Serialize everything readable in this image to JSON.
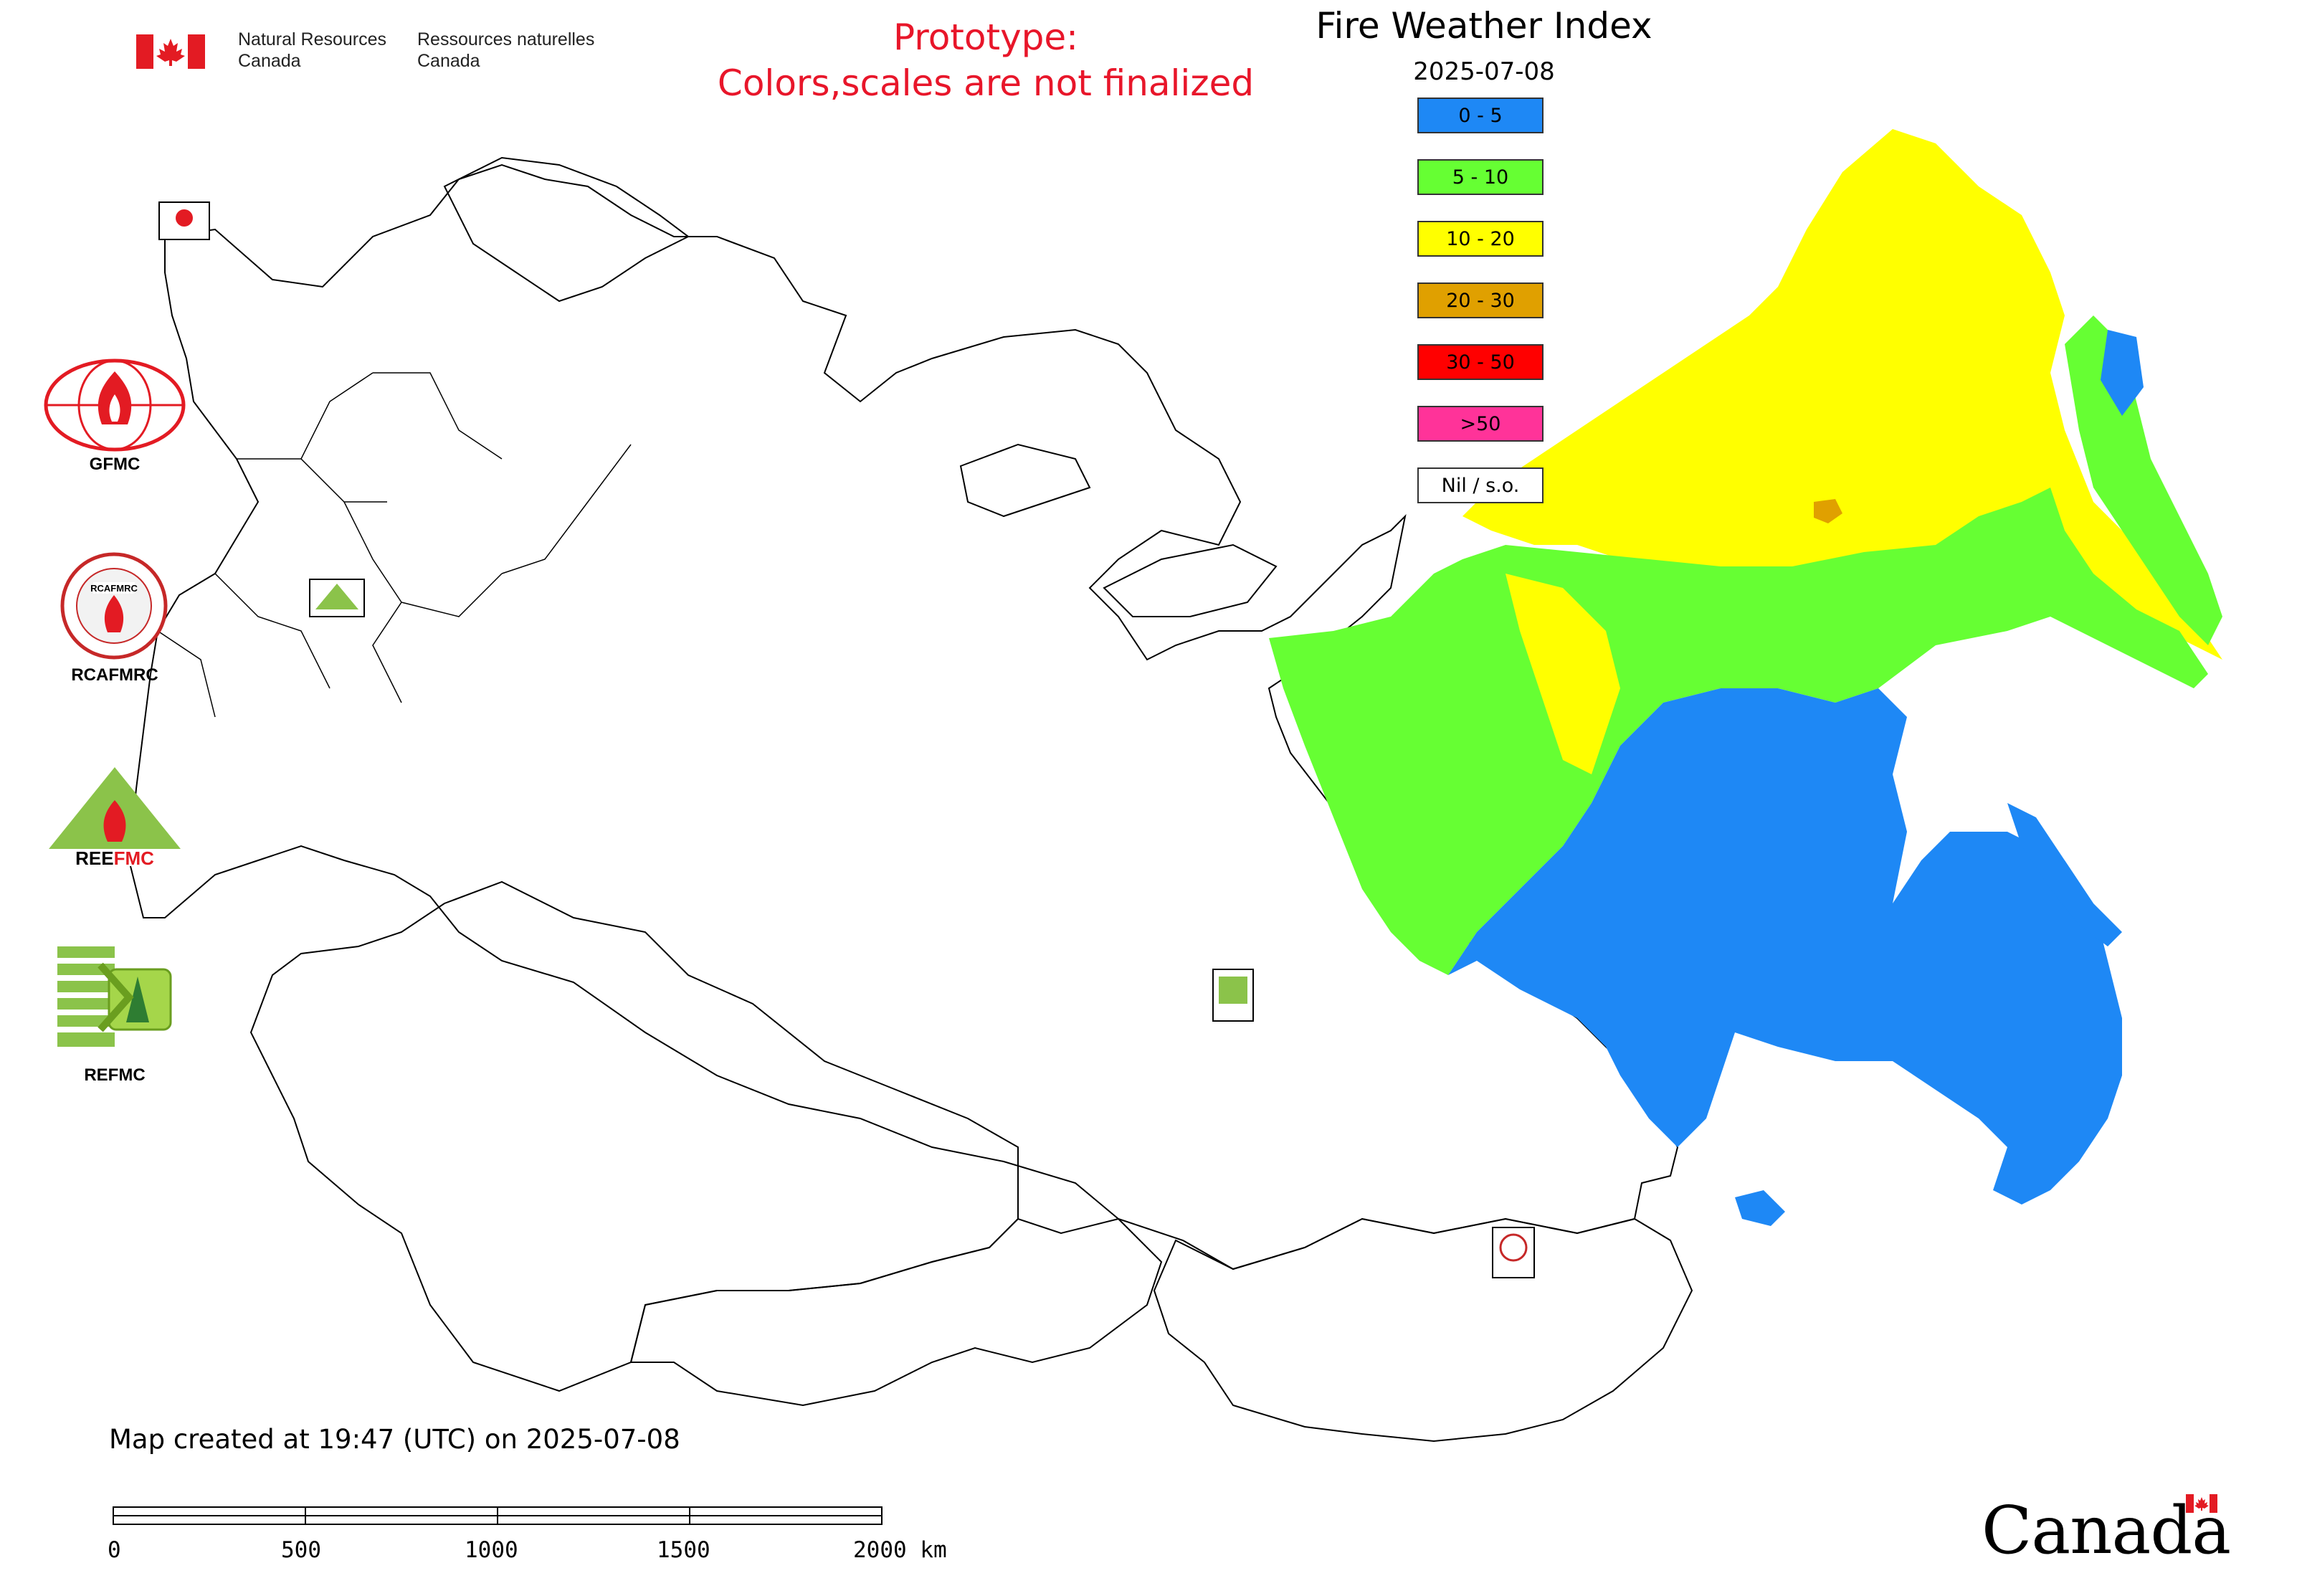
{
  "header": {
    "org_en_line1": "Natural Resources",
    "org_en_line2": "Canada",
    "org_fr_line1": "Ressources naturelles",
    "org_fr_line2": "Canada",
    "warning_line1": "Prototype:",
    "warning_line2": "Colors,scales are not finalized",
    "warning_color": "#e8162a"
  },
  "map_title": "Fire Weather Index",
  "map_date": "2025-07-08",
  "legend": [
    {
      "label": "0 - 5",
      "color": "#1e88f5"
    },
    {
      "label": "5 - 10",
      "color": "#66ff33"
    },
    {
      "label": "10 - 20",
      "color": "#ffff00"
    },
    {
      "label": "20 - 30",
      "color": "#e0a000"
    },
    {
      "label": "30 - 50",
      "color": "#ff0000"
    },
    {
      "label": ">50",
      "color": "#ff3399"
    },
    {
      "label": "Nil / s.o.",
      "color": "#ffffff"
    }
  ],
  "org_logos": [
    {
      "label": "GFMC",
      "icon": "gfmc-logo-icon"
    },
    {
      "label": "RCAFMRC",
      "icon": "rcafmrc-logo-icon"
    },
    {
      "label": "REEFMC",
      "icon": "reefmc-logo-icon"
    },
    {
      "label": "REFMC",
      "icon": "refmc-logo-icon"
    }
  ],
  "footer": {
    "created": "Map created at 19:47 (UTC) on 2025-07-08",
    "scale_labels": [
      "0",
      "500",
      "1000",
      "1500",
      "2000 km"
    ],
    "canada_wordmark": "Canada"
  }
}
